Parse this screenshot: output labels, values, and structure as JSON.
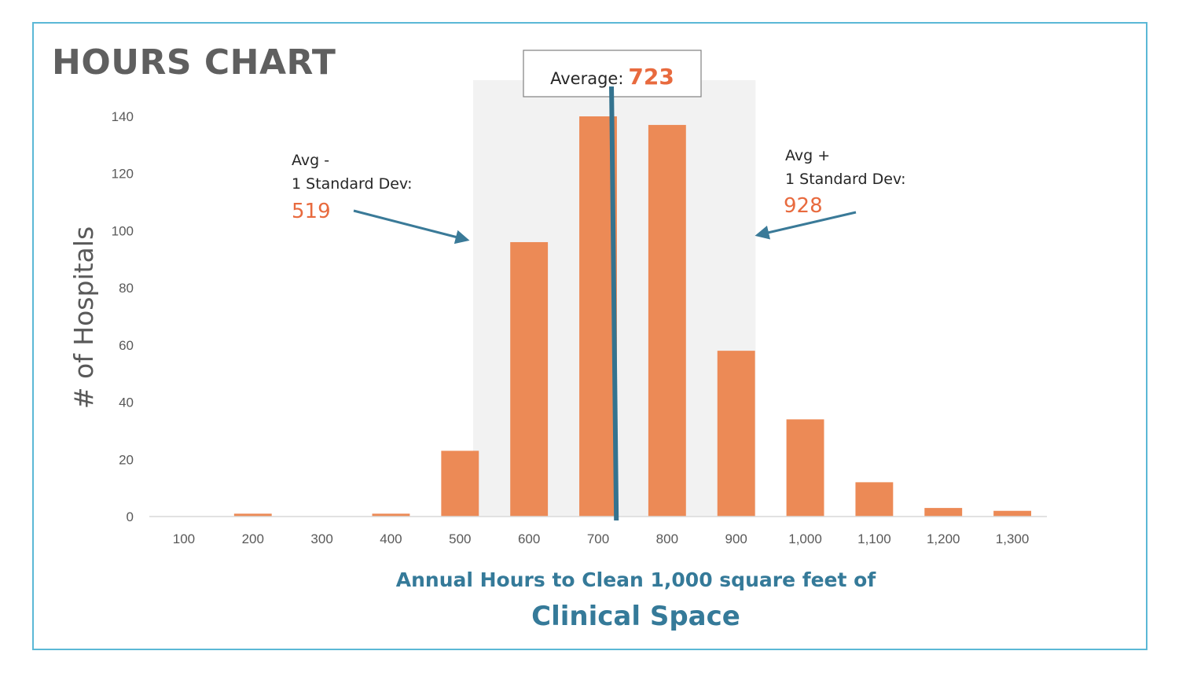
{
  "page": {
    "title": "HOURS CHART"
  },
  "chart_data": {
    "type": "bar",
    "title": "HOURS CHART",
    "categories": [
      "100",
      "200",
      "300",
      "400",
      "500",
      "600",
      "700",
      "800",
      "900",
      "1,000",
      "1,100",
      "1,200",
      "1,300"
    ],
    "values": [
      0,
      1,
      0,
      1,
      23,
      96,
      140,
      137,
      58,
      34,
      12,
      3,
      2
    ],
    "xlabel_line1": "Annual Hours to Clean 1,000 square feet of",
    "xlabel_line2": "Clinical Space",
    "ylabel": "# of Hospitals",
    "ylim": [
      0,
      140
    ],
    "yticks": [
      0,
      20,
      40,
      60,
      80,
      100,
      120,
      140
    ],
    "colors": {
      "bar": "#ec8a56",
      "band": "#f2f2f2",
      "average_line": "#34738f",
      "arrow": "#3a7a98",
      "accent_value": "#e86a3e"
    },
    "average": {
      "label": "Average:",
      "value": "723",
      "x_value": 723
    },
    "band": {
      "x_from": 519,
      "x_to": 928
    },
    "annotations": {
      "minus_sd": {
        "line1": "Avg -",
        "line2": "1 Standard Dev:",
        "value": "519"
      },
      "plus_sd": {
        "line1": "Avg +",
        "line2": "1 Standard Dev:",
        "value": "928"
      }
    }
  }
}
